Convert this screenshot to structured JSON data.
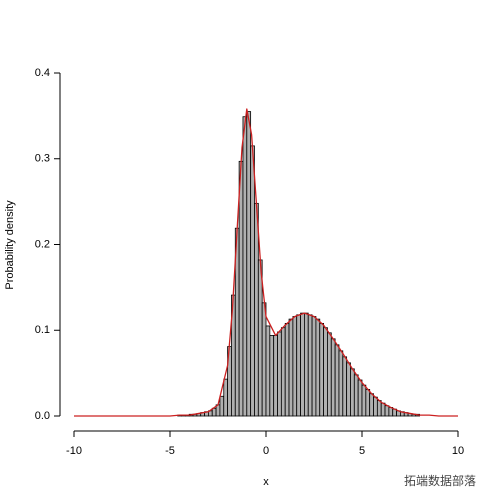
{
  "chart_data": {
    "type": "histogram",
    "x_label": "x",
    "y_label": "Probability density",
    "bins": [
      -5,
      -4.8,
      -4.6,
      -4.4,
      -4.2,
      -4,
      -3.8,
      -3.6,
      -3.4,
      -3.2,
      -3,
      -2.8,
      -2.6,
      -2.4,
      -2.2,
      -2,
      -1.8,
      -1.6,
      -1.4,
      -1.2,
      -1,
      -0.8,
      -0.6,
      -0.4,
      -0.2,
      0,
      0.2,
      0.4,
      0.6,
      0.8,
      1,
      1.2,
      1.4,
      1.6,
      1.8,
      2,
      2.2,
      2.4,
      2.6,
      2.8,
      3,
      3.2,
      3.4,
      3.6,
      3.8,
      4,
      4.2,
      4.4,
      4.6,
      4.8,
      5,
      5.2,
      5.4,
      5.6,
      5.8,
      6,
      6.2,
      6.4,
      6.6,
      6.8,
      7,
      7.2,
      7.4,
      7.6,
      7.8,
      8
    ],
    "values": [
      0,
      0,
      0.001,
      0.001,
      0.001,
      0.002,
      0.002,
      0.003,
      0.004,
      0.005,
      0.006,
      0.009,
      0.013,
      0.023,
      0.043,
      0.081,
      0.141,
      0.219,
      0.297,
      0.349,
      0.355,
      0.315,
      0.248,
      0.182,
      0.132,
      0.105,
      0.094,
      0.094,
      0.098,
      0.103,
      0.108,
      0.113,
      0.116,
      0.118,
      0.12,
      0.12,
      0.118,
      0.116,
      0.113,
      0.108,
      0.103,
      0.097,
      0.09,
      0.083,
      0.076,
      0.069,
      0.062,
      0.055,
      0.048,
      0.042,
      0.036,
      0.031,
      0.026,
      0.022,
      0.018,
      0.015,
      0.012,
      0.01,
      0.008,
      0.006,
      0.005,
      0.004,
      0.003,
      0.002,
      0.002
    ],
    "color": "#b0b0b0",
    "density_curve": {
      "color": "#cc2020",
      "x": [
        -10,
        -9.5,
        -9,
        -8.5,
        -8,
        -7.5,
        -7,
        -6.5,
        -6,
        -5.5,
        -5,
        -4.5,
        -4,
        -3.5,
        -3,
        -2.5,
        -2,
        -1.75,
        -1.5,
        -1.25,
        -1,
        -0.75,
        -0.5,
        -0.25,
        0,
        0.5,
        1,
        1.5,
        2,
        2.5,
        3,
        3.5,
        4,
        4.5,
        5,
        5.5,
        6,
        6.5,
        7,
        7.5,
        8,
        8.5,
        9,
        9.5,
        10
      ],
      "values": [
        0,
        0,
        0,
        0,
        0,
        0,
        0,
        0,
        0,
        0,
        0,
        0.001,
        0.001,
        0.003,
        0.005,
        0.013,
        0.059,
        0.124,
        0.219,
        0.313,
        0.358,
        0.328,
        0.248,
        0.167,
        0.116,
        0.094,
        0.106,
        0.116,
        0.12,
        0.116,
        0.106,
        0.09,
        0.073,
        0.055,
        0.039,
        0.026,
        0.016,
        0.01,
        0.005,
        0.003,
        0.001,
        0.001,
        0,
        0,
        0
      ]
    },
    "xlim": [
      -10,
      10
    ],
    "xticks": [
      -10,
      -5,
      0,
      5,
      10
    ],
    "ylim": [
      0,
      0.4
    ],
    "yticks": [
      {
        "value": 0,
        "label": "0.0"
      },
      0.1,
      0.2,
      0.3,
      0.4
    ],
    "watermark": "拓端数据部落"
  }
}
